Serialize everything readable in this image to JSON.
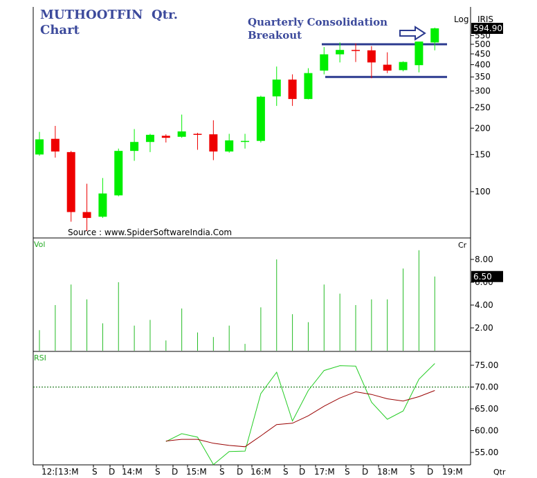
{
  "header": {
    "title_line1": "MUTHOOTFIN  Qtr.",
    "title_line2": "Chart",
    "annotation_line1": "Quarterly Consolidation",
    "annotation_line2": "Breakout",
    "source": "Source : www.SpiderSoftwareIndia.Com",
    "scale_label": "Log",
    "symbol_label": "IRIS",
    "price_tag": "594.90"
  },
  "colors": {
    "up": "#00ee00",
    "down": "#ee0000",
    "title": "#3c4a9c",
    "annotation_lines": "#2b3a8f",
    "volume": "#22bb22",
    "rsi": "#22cc22",
    "rsi_avg": "#990000",
    "rsi_ref": "#006600"
  },
  "chart_data": [
    {
      "type": "candlestick",
      "title": "MUTHOOTFIN  Qtr. Chart",
      "scale": "log",
      "ylim": [
        60,
        700
      ],
      "y_ticks": [
        100,
        150,
        200,
        250,
        300,
        350,
        400,
        450,
        500,
        550
      ],
      "resistance": 500,
      "support": 350,
      "last_value": 594.9,
      "x_labels": [
        "12:[13:M",
        "S",
        "D",
        "14:M",
        "S",
        "D",
        "15:M",
        "S",
        "D",
        "16:M",
        "S",
        "D",
        "17:M",
        "S",
        "D",
        "18:M",
        "S",
        "D",
        "19:M"
      ],
      "x_axis_end_label": "Qtr",
      "candles": [
        {
          "o": 150,
          "h": 192,
          "l": 148,
          "c": 177
        },
        {
          "o": 178,
          "h": 205,
          "l": 145,
          "c": 155
        },
        {
          "o": 154,
          "h": 156,
          "l": 72,
          "c": 80
        },
        {
          "o": 80,
          "h": 109,
          "l": 65,
          "c": 75
        },
        {
          "o": 76,
          "h": 116,
          "l": 75,
          "c": 98
        },
        {
          "o": 96,
          "h": 160,
          "l": 95,
          "c": 156
        },
        {
          "o": 156,
          "h": 198,
          "l": 140,
          "c": 172
        },
        {
          "o": 172,
          "h": 188,
          "l": 154,
          "c": 186
        },
        {
          "o": 184,
          "h": 187,
          "l": 171,
          "c": 180
        },
        {
          "o": 182,
          "h": 232,
          "l": 180,
          "c": 193
        },
        {
          "o": 188,
          "h": 190,
          "l": 158,
          "c": 187
        },
        {
          "o": 187,
          "h": 218,
          "l": 141,
          "c": 155
        },
        {
          "o": 155,
          "h": 188,
          "l": 153,
          "c": 175
        },
        {
          "o": 173,
          "h": 188,
          "l": 160,
          "c": 174
        },
        {
          "o": 174,
          "h": 285,
          "l": 171,
          "c": 282
        },
        {
          "o": 283,
          "h": 392,
          "l": 255,
          "c": 340
        },
        {
          "o": 340,
          "h": 360,
          "l": 255,
          "c": 275
        },
        {
          "o": 275,
          "h": 385,
          "l": 274,
          "c": 365
        },
        {
          "o": 375,
          "h": 485,
          "l": 360,
          "c": 448
        },
        {
          "o": 448,
          "h": 510,
          "l": 410,
          "c": 470
        },
        {
          "o": 470,
          "h": 505,
          "l": 412,
          "c": 465
        },
        {
          "o": 468,
          "h": 490,
          "l": 345,
          "c": 410
        },
        {
          "o": 400,
          "h": 458,
          "l": 365,
          "c": 375
        },
        {
          "o": 377,
          "h": 415,
          "l": 372,
          "c": 412
        },
        {
          "o": 398,
          "h": 515,
          "l": 368,
          "c": 515
        },
        {
          "o": 510,
          "h": 600,
          "l": 468,
          "c": 594.9
        }
      ]
    },
    {
      "type": "bar",
      "title": "Vol",
      "unit": "Cr",
      "ylim": [
        0,
        9.4
      ],
      "y_ticks": [
        2.0,
        4.0,
        6.0,
        8.0
      ],
      "last_value": 6.5,
      "values": [
        1.8,
        4.0,
        5.8,
        4.5,
        2.4,
        6.0,
        2.2,
        2.7,
        0.9,
        3.7,
        1.6,
        1.2,
        2.2,
        0.6,
        3.8,
        8.0,
        3.2,
        2.5,
        5.8,
        5.0,
        4.0,
        4.5,
        4.5,
        7.2,
        8.8,
        6.5
      ]
    },
    {
      "type": "line",
      "title": "RSI",
      "ylim": [
        52.5,
        77.5
      ],
      "y_ticks": [
        55.0,
        60.0,
        65.0,
        70.0,
        75.0
      ],
      "reference_level": 70,
      "start_index": 8,
      "series": [
        {
          "values": [
            57.5,
            59.3,
            58.5,
            52.2,
            55.2,
            55.3,
            68.5,
            73.4,
            62.2,
            69.2,
            73.8,
            74.9,
            74.8,
            66.5,
            62.6,
            64.5,
            71.8,
            75.4
          ]
        },
        {
          "values": [
            57.6,
            58.0,
            58.0,
            57.1,
            56.6,
            56.3,
            58.8,
            61.4,
            61.7,
            63.4,
            65.6,
            67.5,
            68.9,
            68.3,
            67.3,
            66.8,
            67.8,
            69.2
          ]
        }
      ]
    }
  ]
}
